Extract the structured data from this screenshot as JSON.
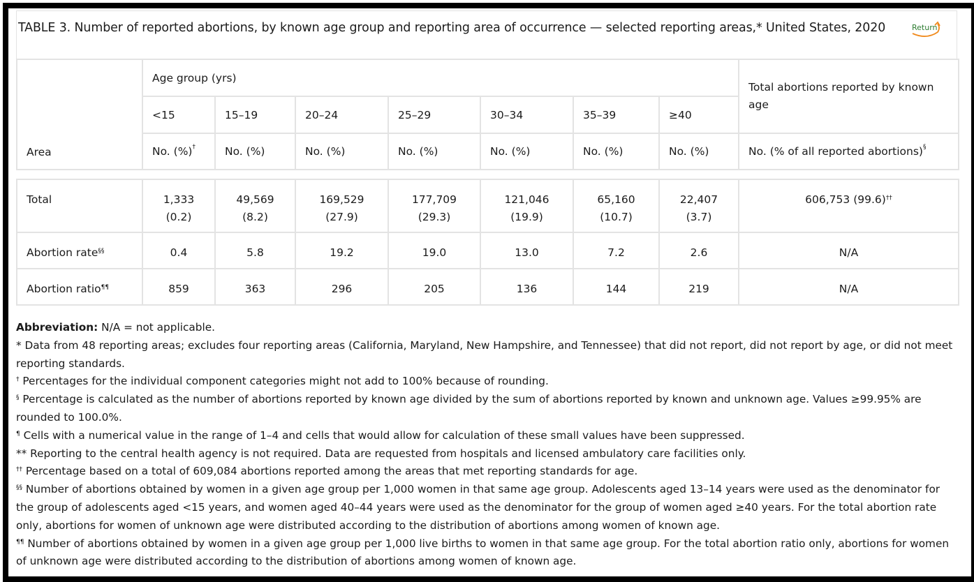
{
  "caption": {
    "title": "TABLE 3. Number of reported abortions, by known age group and reporting area of occurrence — selected reporting areas,* United States, 2020",
    "return_label": "Return"
  },
  "header": {
    "area": "Area",
    "age_group": "Age group (yrs)",
    "total": "Total abortions reported by known age",
    "ages": [
      "<15",
      "15–19",
      "20–24",
      "25–29",
      "30–34",
      "35–39",
      "≥40"
    ],
    "no_pct": "No. (%)",
    "no_pct_sup": "†",
    "total_sub": "No. (% of all reported abortions)",
    "total_sub_sup": "§"
  },
  "rows": [
    {
      "area": "Total",
      "sup": "",
      "cells": [
        [
          "1,333",
          "(0.2)"
        ],
        [
          "49,569",
          "(8.2)"
        ],
        [
          "169,529",
          "(27.9)"
        ],
        [
          "177,709",
          "(29.3)"
        ],
        [
          "121,046",
          "(19.9)"
        ],
        [
          "65,160",
          "(10.7)"
        ],
        [
          "22,407",
          "(3.7)"
        ]
      ],
      "total": "606,753 (99.6)",
      "total_sup": "††"
    },
    {
      "area": "Abortion rate",
      "sup": "§§",
      "cells": [
        [
          "0.4"
        ],
        [
          "5.8"
        ],
        [
          "19.2"
        ],
        [
          "19.0"
        ],
        [
          "13.0"
        ],
        [
          "7.2"
        ],
        [
          "2.6"
        ]
      ],
      "total": "N/A",
      "total_sup": ""
    },
    {
      "area": "Abortion ratio",
      "sup": "¶¶",
      "cells": [
        [
          "859"
        ],
        [
          "363"
        ],
        [
          "296"
        ],
        [
          "205"
        ],
        [
          "136"
        ],
        [
          "144"
        ],
        [
          "219"
        ]
      ],
      "total": "N/A",
      "total_sup": ""
    }
  ],
  "notes": {
    "abbrev_label": "Abbreviation:",
    "abbrev_text": " N/A = not applicable.",
    "items": [
      {
        "mark": "*",
        "text": " Data from 48 reporting areas; excludes four reporting areas (California, Maryland, New Hampshire, and Tennessee) that did not report, did not report by age, or did not meet reporting standards."
      },
      {
        "mark": "†",
        "text": " Percentages for the individual component categories might not add to 100% because of rounding."
      },
      {
        "mark": "§",
        "text": " Percentage is calculated as the number of abortions reported by known age divided by the sum of abortions reported by known and unknown age. Values ≥99.95% are rounded to 100.0%."
      },
      {
        "mark": "¶",
        "text": " Cells with a numerical value in the range of 1–4 and cells that would allow for calculation of these small values have been suppressed."
      },
      {
        "mark": "**",
        "text": " Reporting to the central health agency is not required. Data are requested from hospitals and licensed ambulatory care facilities only."
      },
      {
        "mark": "††",
        "text": " Percentage based on a total of 609,084 abortions reported among the areas that met reporting standards for age."
      },
      {
        "mark": "§§",
        "text": " Number of abortions obtained by women in a given age group per 1,000 women in that same age group. Adolescents aged 13–14 years were used as the denominator for the group of adolescents aged <15 years, and women aged 40–44 years were used as the denominator for the group of women aged ≥40 years. For the total abortion rate only, abortions for women of unknown age were distributed according to the distribution of abortions among women of known age."
      },
      {
        "mark": "¶¶",
        "text": " Number of abortions obtained by women in a given age group per 1,000 live births to women in that same age group. For the total abortion ratio only, abortions for women of unknown age were distributed according to the distribution of abortions among women of known age."
      }
    ]
  },
  "colors": {
    "frame": "#000000",
    "grid": "#e3e3e3",
    "return_text": "#2e7d32",
    "return_arrow": "#f08a1c"
  }
}
